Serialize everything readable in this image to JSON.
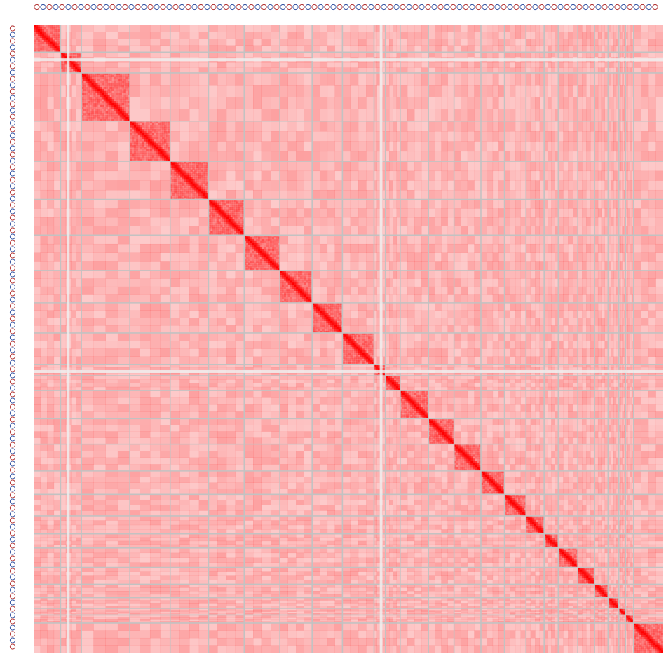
{
  "chart_data": {
    "type": "heatmap",
    "title": "",
    "xlabel": "",
    "ylabel": "",
    "legend": "none",
    "grid": true,
    "scaffold_units": [
      40,
      31,
      72,
      60,
      57,
      53,
      53,
      48,
      45,
      47,
      17,
      22,
      42,
      38,
      40,
      35,
      32,
      27,
      21,
      29,
      25,
      20,
      16,
      10,
      12,
      44
    ],
    "contact_levels": {
      "background_min": 0.12,
      "background_max": 0.3,
      "diagonal_block_min": 0.6,
      "diagonal_block_max": 1.0
    },
    "colors": {
      "low": "#ffffff",
      "high": "#ff0000",
      "grid": "#c2c2c2",
      "track_dot_red": "#b03030",
      "track_dot_blue": "#3050a0"
    }
  }
}
